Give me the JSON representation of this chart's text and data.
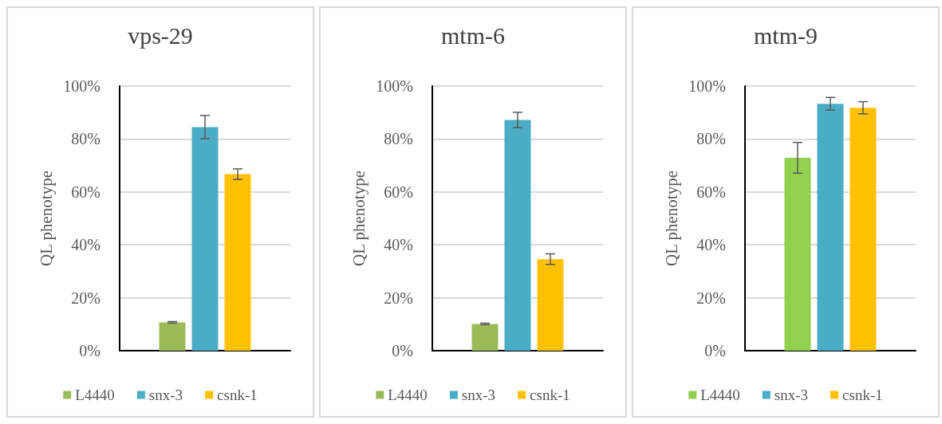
{
  "chart_data": [
    {
      "type": "bar",
      "title": "vps-29",
      "ylabel": "QL phenotype",
      "categories": [
        null
      ],
      "ylim": [
        0,
        1
      ],
      "yticks": [
        {
          "value": 0,
          "label": "0%"
        },
        {
          "value": 0.2,
          "label": "20%"
        },
        {
          "value": 0.4,
          "label": "40%"
        },
        {
          "value": 0.6,
          "label": "60%"
        },
        {
          "value": 0.8,
          "label": "80%"
        },
        {
          "value": 1,
          "label": "100%"
        }
      ],
      "grid": "y",
      "legend": "bottom",
      "series": [
        {
          "name": "L4440",
          "color": "#9bbb59",
          "values": [
            0.107
          ],
          "errors": [
            0.003
          ]
        },
        {
          "name": "snx-3",
          "color": "#4bacc6",
          "values": [
            0.845
          ],
          "errors": [
            0.044
          ]
        },
        {
          "name": "csnk-1",
          "color": "#ffc000",
          "values": [
            0.667
          ],
          "errors": [
            0.02
          ]
        }
      ]
    },
    {
      "type": "bar",
      "title": "mtm-6",
      "ylabel": "QL phenotype",
      "categories": [
        null
      ],
      "ylim": [
        0,
        1
      ],
      "yticks": [
        {
          "value": 0,
          "label": "0%"
        },
        {
          "value": 0.2,
          "label": "20%"
        },
        {
          "value": 0.4,
          "label": "40%"
        },
        {
          "value": 0.6,
          "label": "60%"
        },
        {
          "value": 0.8,
          "label": "80%"
        },
        {
          "value": 1,
          "label": "100%"
        }
      ],
      "grid": "y",
      "legend": "bottom",
      "series": [
        {
          "name": "L4440",
          "color": "#9bbb59",
          "values": [
            0.101
          ],
          "errors": [
            0.003
          ]
        },
        {
          "name": "snx-3",
          "color": "#4bacc6",
          "values": [
            0.872
          ],
          "errors": [
            0.029
          ]
        },
        {
          "name": "csnk-1",
          "color": "#ffc000",
          "values": [
            0.346
          ],
          "errors": [
            0.02
          ]
        }
      ]
    },
    {
      "type": "bar",
      "title": "mtm-9",
      "ylabel": "QL phenotype",
      "categories": [
        null
      ],
      "ylim": [
        0,
        1
      ],
      "yticks": [
        {
          "value": 0,
          "label": "0%"
        },
        {
          "value": 0.2,
          "label": "20%"
        },
        {
          "value": 0.4,
          "label": "40%"
        },
        {
          "value": 0.6,
          "label": "60%"
        },
        {
          "value": 0.8,
          "label": "80%"
        },
        {
          "value": 1,
          "label": "100%"
        }
      ],
      "grid": "y",
      "legend": "bottom",
      "series": [
        {
          "name": "L4440",
          "color": "#92d050",
          "values": [
            0.729
          ],
          "errors": [
            0.058
          ]
        },
        {
          "name": "snx-3",
          "color": "#4bacc6",
          "values": [
            0.933
          ],
          "errors": [
            0.024
          ]
        },
        {
          "name": "csnk-1",
          "color": "#ffc000",
          "values": [
            0.918
          ],
          "errors": [
            0.023
          ]
        }
      ]
    }
  ]
}
